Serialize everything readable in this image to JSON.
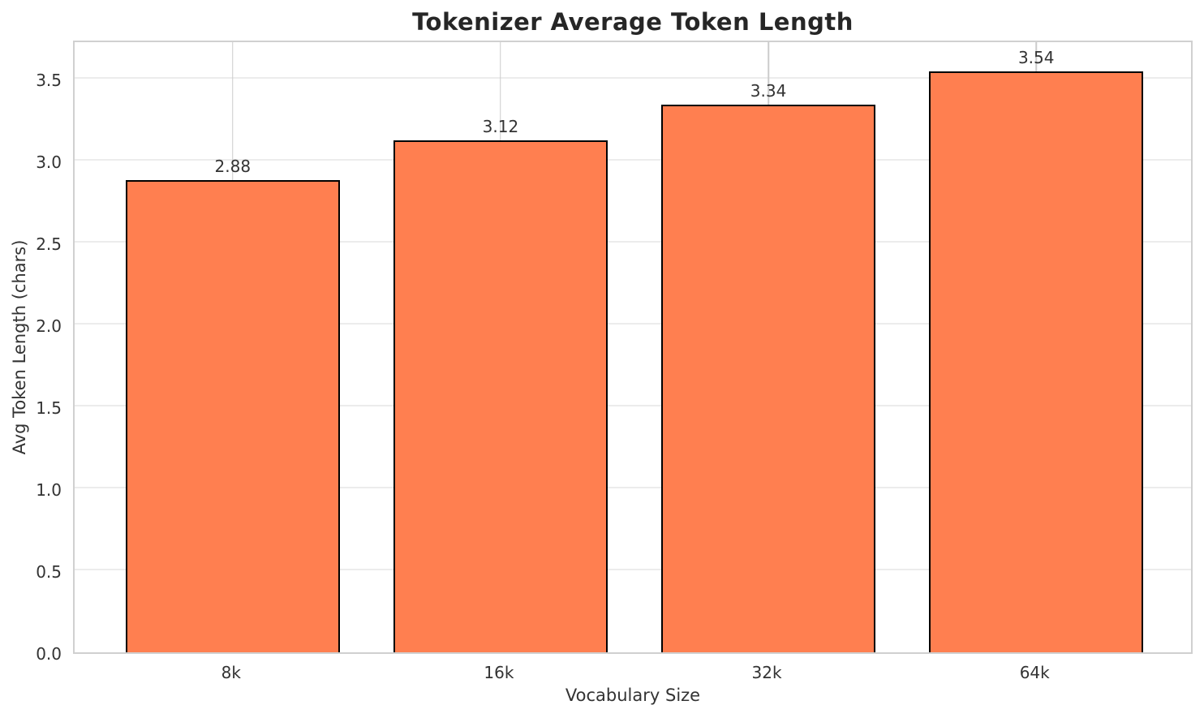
{
  "chart_data": {
    "type": "bar",
    "title": "Tokenizer Average Token Length",
    "xlabel": "Vocabulary Size",
    "ylabel": "Avg Token Length (chars)",
    "categories": [
      "8k",
      "16k",
      "32k",
      "64k"
    ],
    "values": [
      2.88,
      3.12,
      3.34,
      3.54
    ],
    "value_labels": [
      "2.88",
      "3.12",
      "3.34",
      "3.54"
    ],
    "y_ticks": [
      "0.0",
      "0.5",
      "1.0",
      "1.5",
      "2.0",
      "2.5",
      "3.0",
      "3.5"
    ],
    "y_tick_values": [
      0,
      0.5,
      1,
      1.5,
      2,
      2.5,
      3,
      3.5
    ],
    "ylim": [
      0,
      3.74
    ],
    "xlim": [
      -0.59,
      3.59
    ],
    "bar_width": 0.8,
    "grid": "x-major and y-major, y fainter",
    "legend": "none",
    "colors": {
      "bar_fill": "#FF7F50",
      "bar_edge": "#000000",
      "grid_x": "#cccccc",
      "grid_y": "#ececec",
      "spine": "#d0d0d0",
      "title_text": "#262626",
      "label_text": "#333333",
      "background": "#ffffff"
    }
  }
}
